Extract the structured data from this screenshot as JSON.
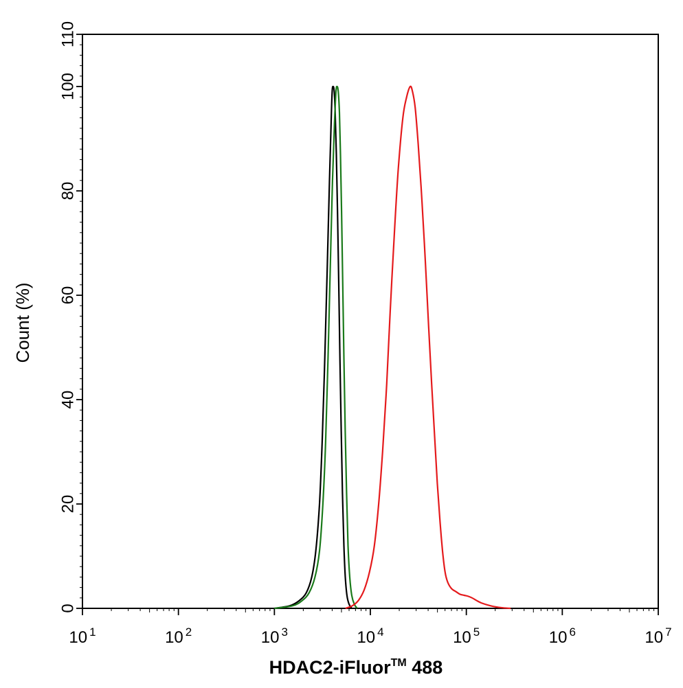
{
  "chart_data": {
    "type": "line",
    "xlabel": "HDAC2-iFluor",
    "xlabel_mark": "TM",
    "xlabel_suffix": " 488",
    "ylabel": "Count  (%)",
    "x_scale": "log",
    "xlim": [
      10,
      10000000
    ],
    "ylim": [
      0,
      110
    ],
    "grid": false,
    "legend": "none",
    "y_ticks": [
      0,
      20,
      40,
      60,
      80,
      100,
      110
    ],
    "x_ticks": [
      {
        "value": 10,
        "base": "10",
        "exp": "1"
      },
      {
        "value": 100,
        "base": "10",
        "exp": "2"
      },
      {
        "value": 1000,
        "base": "10",
        "exp": "3"
      },
      {
        "value": 10000,
        "base": "10",
        "exp": "4"
      },
      {
        "value": 100000,
        "base": "10",
        "exp": "5"
      },
      {
        "value": 1000000,
        "base": "10",
        "exp": "6"
      },
      {
        "value": 10000000,
        "base": "10",
        "exp": "7"
      }
    ],
    "series": [
      {
        "color": "#000000",
        "points": [
          [
            1000,
            0
          ],
          [
            1450,
            0.5
          ],
          [
            1820,
            1.5
          ],
          [
            2150,
            3
          ],
          [
            2450,
            6
          ],
          [
            2700,
            11
          ],
          [
            2950,
            20
          ],
          [
            3150,
            32
          ],
          [
            3350,
            48
          ],
          [
            3550,
            65
          ],
          [
            3750,
            82
          ],
          [
            3900,
            93
          ],
          [
            4000,
            99
          ],
          [
            4100,
            100
          ],
          [
            4200,
            99
          ],
          [
            4300,
            95
          ],
          [
            4420,
            87
          ],
          [
            4550,
            76
          ],
          [
            4680,
            63
          ],
          [
            4820,
            48
          ],
          [
            4970,
            34
          ],
          [
            5120,
            22
          ],
          [
            5300,
            12
          ],
          [
            5480,
            6
          ],
          [
            5700,
            2.5
          ],
          [
            6000,
            0.8
          ],
          [
            6400,
            0
          ]
        ]
      },
      {
        "color": "#1a7a1a",
        "points": [
          [
            1000,
            0
          ],
          [
            1550,
            0.5
          ],
          [
            1950,
            1.5
          ],
          [
            2300,
            3
          ],
          [
            2650,
            6
          ],
          [
            2950,
            11
          ],
          [
            3200,
            20
          ],
          [
            3420,
            32
          ],
          [
            3620,
            48
          ],
          [
            3820,
            65
          ],
          [
            4030,
            82
          ],
          [
            4230,
            93
          ],
          [
            4380,
            99
          ],
          [
            4500,
            100
          ],
          [
            4630,
            99
          ],
          [
            4760,
            95
          ],
          [
            4880,
            87
          ],
          [
            5010,
            76
          ],
          [
            5150,
            63
          ],
          [
            5300,
            48
          ],
          [
            5470,
            34
          ],
          [
            5650,
            22
          ],
          [
            5850,
            12
          ],
          [
            6100,
            6
          ],
          [
            6400,
            2.5
          ],
          [
            6800,
            0.8
          ],
          [
            7300,
            0
          ]
        ]
      },
      {
        "color": "#e41a1c",
        "points": [
          [
            5500,
            0
          ],
          [
            6500,
            0.5
          ],
          [
            7500,
            1.5
          ],
          [
            8600,
            3.5
          ],
          [
            9800,
            7
          ],
          [
            11000,
            12
          ],
          [
            12200,
            20
          ],
          [
            13400,
            30
          ],
          [
            14800,
            43
          ],
          [
            16100,
            57
          ],
          [
            17800,
            72
          ],
          [
            19500,
            84
          ],
          [
            21800,
            94
          ],
          [
            23900,
            98
          ],
          [
            26000,
            100
          ],
          [
            27500,
            99
          ],
          [
            29300,
            96
          ],
          [
            31500,
            89
          ],
          [
            34500,
            78
          ],
          [
            37500,
            66
          ],
          [
            40500,
            54
          ],
          [
            43500,
            43
          ],
          [
            46700,
            33
          ],
          [
            49800,
            24
          ],
          [
            53000,
            17
          ],
          [
            56500,
            11
          ],
          [
            60000,
            7
          ],
          [
            64000,
            5
          ],
          [
            70000,
            3.8
          ],
          [
            78000,
            3.2
          ],
          [
            86000,
            2.7
          ],
          [
            95000,
            2.5
          ],
          [
            105000,
            2.3
          ],
          [
            115000,
            2.0
          ],
          [
            128000,
            1.5
          ],
          [
            145000,
            1.0
          ],
          [
            170000,
            0.6
          ],
          [
            200000,
            0.3
          ],
          [
            240000,
            0.1
          ],
          [
            290000,
            0
          ]
        ]
      }
    ]
  }
}
